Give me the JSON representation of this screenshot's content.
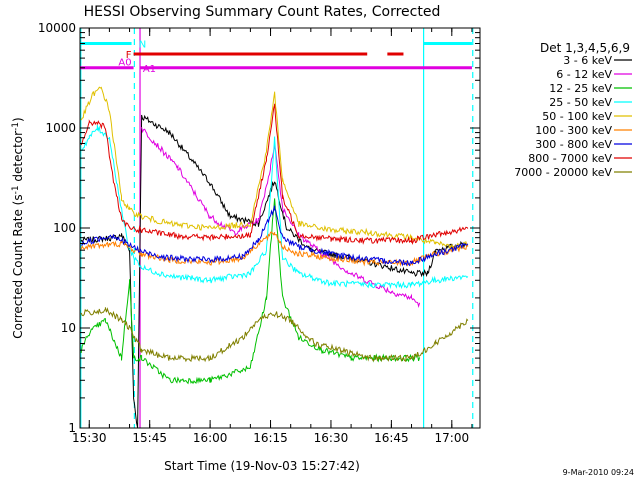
{
  "chart_data": {
    "type": "line",
    "title": "HESSI Observing Summary Count Rates, Corrected",
    "xlabel": "Start Time (19-Nov-03 15:27:42)",
    "ylabel_main": "Corrected Count Rate (s",
    "ylabel_sup1": "-1",
    "ylabel_mid": " detector",
    "ylabel_sup2": "-1",
    "ylabel_end": ")",
    "footer": "9-Mar-2010 09:24",
    "y_scale": "log",
    "ylim": [
      1,
      10000
    ],
    "xlim_min": [
      27.7,
      106.2
    ],
    "x_ticks": [
      {
        "min": 30,
        "label": "15:30"
      },
      {
        "min": 45,
        "label": "15:45"
      },
      {
        "min": 60,
        "label": "16:00"
      },
      {
        "min": 75,
        "label": "16:15"
      },
      {
        "min": 90,
        "label": "16:30"
      },
      {
        "min": 105,
        "label": "16:45"
      },
      {
        "min": 120,
        "label": "17:00"
      }
    ],
    "y_ticks": [
      {
        "v": 1,
        "label": "1"
      },
      {
        "v": 10,
        "label": "10"
      },
      {
        "v": 100,
        "label": "100"
      },
      {
        "v": 1000,
        "label": "1000"
      },
      {
        "v": 10000,
        "label": "10000"
      }
    ],
    "legend": {
      "title": "Det 1,3,4,5,6,9",
      "placement": "right"
    },
    "series": [
      {
        "name": "3 - 6 keV",
        "color": "#000000",
        "points": [
          [
            28,
            75
          ],
          [
            36,
            80
          ],
          [
            38,
            85
          ],
          [
            40,
            60
          ],
          [
            41,
            2
          ],
          [
            42,
            1
          ],
          [
            43,
            1300
          ],
          [
            50,
            900
          ],
          [
            60,
            280
          ],
          [
            65,
            130
          ],
          [
            72,
            110
          ],
          [
            76,
            300
          ],
          [
            79,
            100
          ],
          [
            85,
            60
          ],
          [
            95,
            50
          ],
          [
            105,
            40
          ],
          [
            110,
            35
          ],
          [
            114,
            35
          ],
          [
            116,
            60
          ],
          [
            120,
            65
          ],
          [
            124,
            70
          ]
        ]
      },
      {
        "name": "6 - 12 keV",
        "color": "#e000e0",
        "points": [
          [
            43,
            1000
          ],
          [
            52,
            400
          ],
          [
            60,
            130
          ],
          [
            66,
            90
          ],
          [
            72,
            120
          ],
          [
            75,
            400
          ],
          [
            76,
            700
          ],
          [
            78,
            160
          ],
          [
            82,
            85
          ],
          [
            88,
            55
          ],
          [
            95,
            35
          ],
          [
            105,
            23
          ],
          [
            110,
            20
          ],
          [
            112,
            17
          ]
        ]
      },
      {
        "name": "12 - 25 keV",
        "color": "#00c000",
        "points": [
          [
            28,
            6
          ],
          [
            30,
            9
          ],
          [
            34,
            12
          ],
          [
            38,
            5
          ],
          [
            40,
            30
          ],
          [
            41,
            5
          ],
          [
            43,
            5
          ],
          [
            50,
            3
          ],
          [
            60,
            3
          ],
          [
            70,
            4
          ],
          [
            74,
            20
          ],
          [
            76,
            200
          ],
          [
            78,
            20
          ],
          [
            82,
            8
          ],
          [
            88,
            6
          ],
          [
            95,
            5
          ],
          [
            105,
            5
          ],
          [
            112,
            5
          ]
        ]
      },
      {
        "name": "25 - 50 keV",
        "color": "#00ffff",
        "points": [
          [
            28,
            600
          ],
          [
            30,
            800
          ],
          [
            32,
            1000
          ],
          [
            35,
            800
          ],
          [
            38,
            150
          ],
          [
            40,
            60
          ],
          [
            43,
            40
          ],
          [
            50,
            33
          ],
          [
            60,
            30
          ],
          [
            70,
            35
          ],
          [
            74,
            60
          ],
          [
            76,
            800
          ],
          [
            78,
            50
          ],
          [
            82,
            35
          ],
          [
            90,
            28
          ],
          [
            100,
            27
          ],
          [
            110,
            27
          ],
          [
            116,
            30
          ],
          [
            124,
            33
          ]
        ]
      },
      {
        "name": "50 - 100 keV",
        "color": "#e0c000",
        "points": [
          [
            28,
            1200
          ],
          [
            31,
            2200
          ],
          [
            33,
            2500
          ],
          [
            35,
            1500
          ],
          [
            38,
            200
          ],
          [
            40,
            150
          ],
          [
            43,
            130
          ],
          [
            50,
            110
          ],
          [
            60,
            100
          ],
          [
            70,
            110
          ],
          [
            74,
            600
          ],
          [
            76,
            2200
          ],
          [
            78,
            300
          ],
          [
            82,
            110
          ],
          [
            90,
            95
          ],
          [
            100,
            90
          ],
          [
            110,
            80
          ],
          [
            116,
            70
          ],
          [
            120,
            65
          ],
          [
            124,
            70
          ]
        ]
      },
      {
        "name": "100 - 300 keV",
        "color": "#ff8000",
        "points": [
          [
            28,
            65
          ],
          [
            35,
            68
          ],
          [
            38,
            70
          ],
          [
            43,
            55
          ],
          [
            50,
            48
          ],
          [
            60,
            45
          ],
          [
            68,
            50
          ],
          [
            72,
            70
          ],
          [
            76,
            90
          ],
          [
            78,
            65
          ],
          [
            82,
            55
          ],
          [
            90,
            50
          ],
          [
            100,
            45
          ],
          [
            110,
            45
          ],
          [
            116,
            55
          ],
          [
            124,
            65
          ]
        ]
      },
      {
        "name": "300 - 800 keV",
        "color": "#0000e0",
        "points": [
          [
            28,
            70
          ],
          [
            36,
            85
          ],
          [
            38,
            75
          ],
          [
            43,
            58
          ],
          [
            50,
            50
          ],
          [
            60,
            48
          ],
          [
            68,
            52
          ],
          [
            72,
            75
          ],
          [
            76,
            160
          ],
          [
            78,
            80
          ],
          [
            82,
            65
          ],
          [
            90,
            55
          ],
          [
            100,
            48
          ],
          [
            110,
            45
          ],
          [
            116,
            55
          ],
          [
            124,
            68
          ]
        ]
      },
      {
        "name": "800 - 7000 keV",
        "color": "#e00000",
        "points": [
          [
            28,
            700
          ],
          [
            30,
            1100
          ],
          [
            32,
            1150
          ],
          [
            34,
            1000
          ],
          [
            36,
            300
          ],
          [
            38,
            120
          ],
          [
            40,
            100
          ],
          [
            43,
            95
          ],
          [
            50,
            85
          ],
          [
            60,
            80
          ],
          [
            70,
            85
          ],
          [
            74,
            500
          ],
          [
            76,
            1700
          ],
          [
            78,
            200
          ],
          [
            82,
            85
          ],
          [
            90,
            78
          ],
          [
            100,
            75
          ],
          [
            110,
            75
          ],
          [
            116,
            85
          ],
          [
            124,
            100
          ]
        ]
      },
      {
        "name": "7000 - 20000 keV",
        "color": "#808000",
        "points": [
          [
            28,
            14
          ],
          [
            34,
            15
          ],
          [
            38,
            12
          ],
          [
            40,
            10
          ],
          [
            43,
            6
          ],
          [
            50,
            5
          ],
          [
            60,
            5
          ],
          [
            68,
            8
          ],
          [
            72,
            12
          ],
          [
            76,
            14
          ],
          [
            80,
            12
          ],
          [
            86,
            7
          ],
          [
            92,
            6
          ],
          [
            100,
            5
          ],
          [
            110,
            5
          ],
          [
            116,
            7
          ],
          [
            124,
            12
          ]
        ]
      }
    ],
    "state_bars": [
      {
        "label": "N",
        "color": "#00ffff",
        "y": 7000,
        "segments": [
          [
            27.7,
            40.5
          ],
          [
            113,
            125
          ]
        ]
      },
      {
        "label": "F",
        "color": "#e00000",
        "y": 5500,
        "segments": [
          [
            41,
            99
          ],
          [
            104,
            108
          ]
        ]
      },
      {
        "label": "A0",
        "color": "#e000e0",
        "y": 4600,
        "segments": []
      },
      {
        "label": "A1",
        "color": "#e000e0",
        "y": 4000,
        "segments": [
          [
            27.7,
            41
          ],
          [
            42.5,
            125
          ]
        ]
      }
    ],
    "vlines": [
      {
        "x": 27.9,
        "color": "#00ffff",
        "dashed": false
      },
      {
        "x": 41.2,
        "color": "#00ffff",
        "dashed": true
      },
      {
        "x": 42.6,
        "color": "#e000e0",
        "dashed": false
      },
      {
        "x": 113.0,
        "color": "#00ffff",
        "dashed": false
      },
      {
        "x": 125.2,
        "color": "#00ffff",
        "dashed": true
      }
    ]
  }
}
